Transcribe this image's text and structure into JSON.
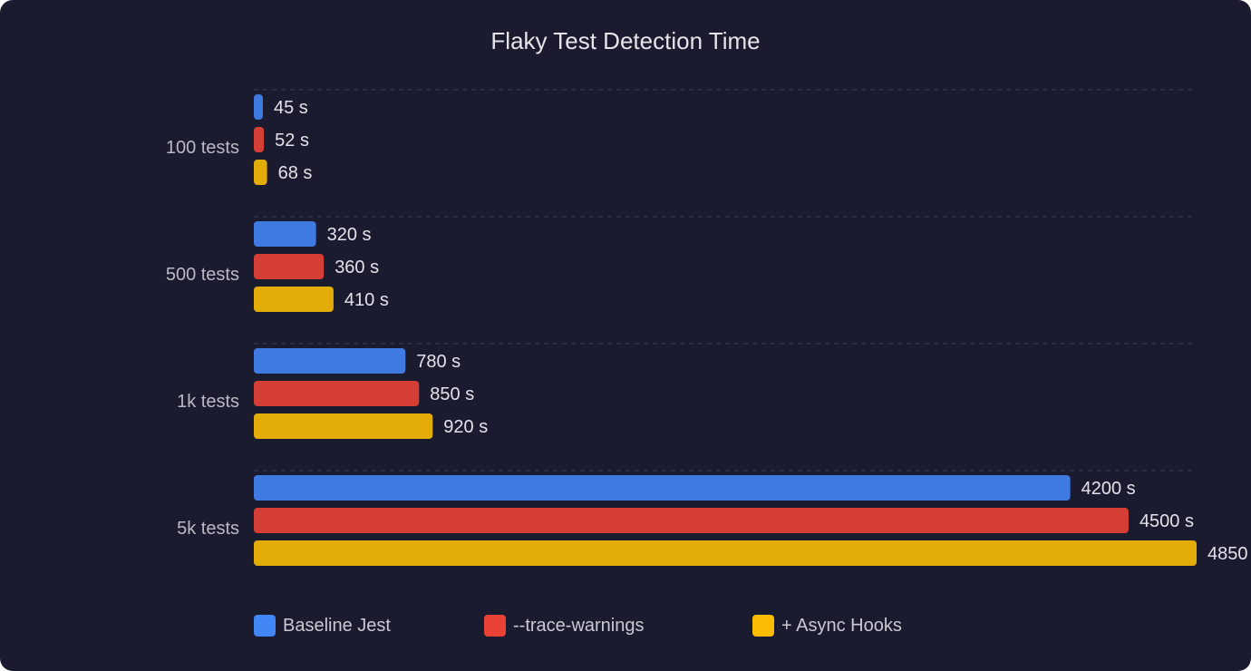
{
  "chart_data": {
    "type": "bar",
    "orientation": "horizontal",
    "title": "Flaky Test Detection Time",
    "categories": [
      "100 tests",
      "500 tests",
      "1k tests",
      "5k tests"
    ],
    "unit_suffix": " s",
    "series": [
      {
        "name": "Baseline Jest",
        "color": "#4285f4",
        "values": [
          45,
          320,
          780,
          4200
        ]
      },
      {
        "name": "--trace-warnings",
        "color": "#ea4335",
        "values": [
          52,
          360,
          850,
          4500
        ]
      },
      {
        "name": "+ Async Hooks",
        "color": "#fbbc04",
        "values": [
          68,
          410,
          920,
          4850
        ]
      }
    ],
    "xlim": [
      0,
      4850
    ],
    "grid": "horizontal dashed separators",
    "legend": "bottom",
    "background": "#1a1b2e"
  }
}
